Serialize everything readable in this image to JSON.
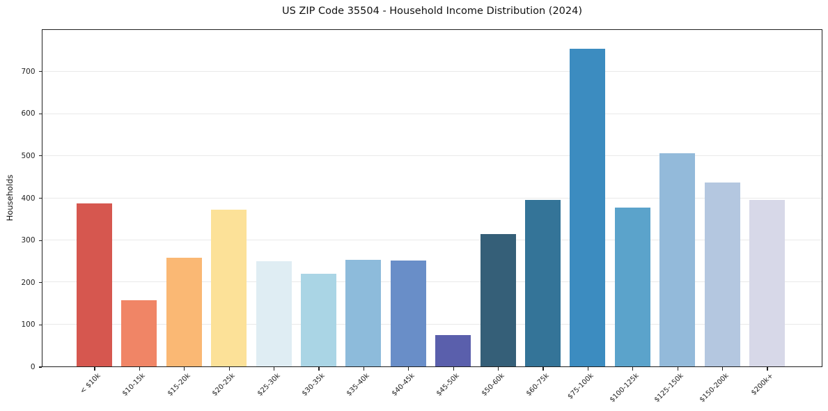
{
  "header": {
    "title": "US ZIP Code 35504 - Household Income Distribution (2024)"
  },
  "chart_data": {
    "type": "bar",
    "title": "US ZIP Code 35504 - Household Income Distribution (2024)",
    "xlabel": "",
    "ylabel": "Households",
    "ylim": [
      0,
      800
    ],
    "yticks": [
      0,
      100,
      200,
      300,
      400,
      500,
      600,
      700
    ],
    "grid": "horizontal",
    "legend": "none",
    "categories": [
      "< $10k",
      "$10-15k",
      "$15-20k",
      "$20-25k",
      "$25-30k",
      "$30-35k",
      "$35-40k",
      "$40-45k",
      "$45-50k",
      "$50-60k",
      "$60-75k",
      "$75-100k",
      "$100-125k",
      "$125-150k",
      "$150-200k",
      "$200k+"
    ],
    "values": [
      388,
      157,
      259,
      372,
      250,
      220,
      254,
      252,
      75,
      314,
      396,
      755,
      378,
      507,
      438,
      396
    ],
    "bar_colors": [
      "#d6574f",
      "#f08566",
      "#fab874",
      "#fce198",
      "#dfedf3",
      "#aad5e5",
      "#8dbbdb",
      "#698ec8",
      "#5a5fac",
      "#355f78",
      "#347498",
      "#3c8cc0",
      "#5ba3cb",
      "#93bada",
      "#b4c7e0",
      "#d7d8e8"
    ],
    "colors": {
      "background": "#ffffff",
      "spine": "#1f1f1f",
      "gridline": "#e9e9e9",
      "tick_text": "#222222"
    }
  }
}
